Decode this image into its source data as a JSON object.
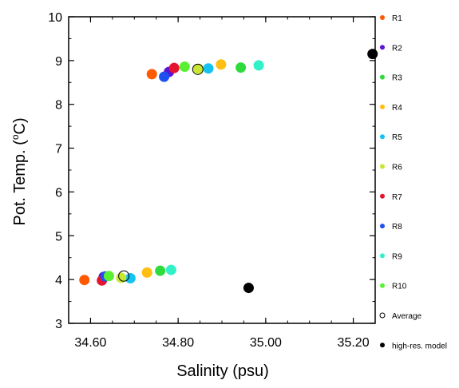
{
  "chart_data": {
    "type": "scatter",
    "xlabel": "Salinity (psu)",
    "ylabel_main": "Pot. Temp. (",
    "ylabel_unit": "o",
    "ylabel_end": "C)",
    "xlim": [
      34.55,
      35.25
    ],
    "ylim": [
      3,
      10
    ],
    "xticks": [
      34.6,
      34.8,
      35.0,
      35.2
    ],
    "xtick_labels": [
      "34.60",
      "34.80",
      "35.00",
      "35.20"
    ],
    "yticks": [
      3,
      4,
      5,
      6,
      7,
      8,
      9,
      10
    ],
    "ytick_labels": [
      "3",
      "4",
      "5",
      "6",
      "7",
      "8",
      "9",
      "10"
    ],
    "grid": false,
    "legend_position": "right",
    "series": [
      {
        "name": "R1",
        "color": "#ff5a00",
        "filled": true,
        "points": [
          [
            34.586,
            3.99
          ],
          [
            34.74,
            8.69
          ]
        ]
      },
      {
        "name": "R2",
        "color": "#5a14d6",
        "filled": true,
        "points": [
          [
            34.63,
            4.06
          ],
          [
            34.779,
            8.74
          ]
        ]
      },
      {
        "name": "R3",
        "color": "#2ddc3c",
        "filled": true,
        "points": [
          [
            34.759,
            4.2
          ],
          [
            34.943,
            8.84
          ]
        ]
      },
      {
        "name": "R4",
        "color": "#ffbe14",
        "filled": true,
        "points": [
          [
            34.729,
            4.16
          ],
          [
            34.898,
            8.91
          ]
        ]
      },
      {
        "name": "R5",
        "color": "#14c3f0",
        "filled": true,
        "points": [
          [
            34.691,
            4.03
          ],
          [
            34.869,
            8.82
          ]
        ]
      },
      {
        "name": "R6",
        "color": "#c8e632",
        "filled": true,
        "points": [
          [
            34.67,
            4.04
          ],
          [
            34.846,
            8.81
          ]
        ]
      },
      {
        "name": "R7",
        "color": "#e6142d",
        "filled": true,
        "points": [
          [
            34.626,
            3.98
          ],
          [
            34.791,
            8.83
          ]
        ]
      },
      {
        "name": "R8",
        "color": "#1e50f0",
        "filled": true,
        "points": [
          [
            34.634,
            4.07
          ],
          [
            34.768,
            8.63
          ]
        ]
      },
      {
        "name": "R9",
        "color": "#32f0c8",
        "filled": true,
        "points": [
          [
            34.784,
            4.22
          ],
          [
            34.984,
            8.89
          ]
        ]
      },
      {
        "name": "R10",
        "color": "#5af032",
        "filled": true,
        "points": [
          [
            34.642,
            4.08
          ],
          [
            34.815,
            8.86
          ]
        ]
      },
      {
        "name": "Average",
        "color": "#000000",
        "filled": false,
        "points": [
          [
            34.676,
            4.08
          ],
          [
            34.845,
            8.8
          ]
        ]
      },
      {
        "name": "high-res. model",
        "color": "#000000",
        "filled": true,
        "points": [
          [
            34.961,
            3.81
          ],
          [
            35.244,
            9.15
          ]
        ]
      }
    ]
  }
}
